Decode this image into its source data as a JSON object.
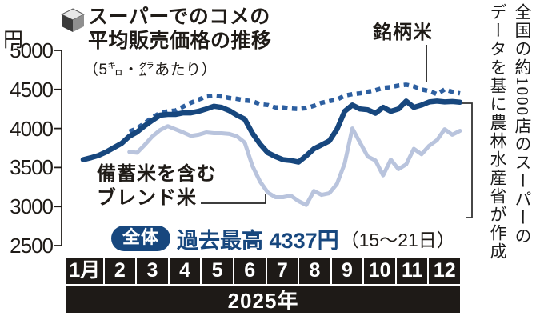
{
  "title": {
    "line1": "スーパーでのコメの",
    "line2": "平均販売価格の推移",
    "subtitle": "（5㌔・㌘あたり）",
    "bullet_icon": "cube-icon"
  },
  "unit_label": "円",
  "labels": {
    "brand_line": "銘柄米",
    "blend_line1": "備蓄米を含む",
    "blend_line2": "ブレンド米",
    "overall_badge": "全体",
    "record_label": "過去最高",
    "record_value": "4337円",
    "record_period": "（15〜21日）"
  },
  "source_note": {
    "col1": "全国の約1000店のスーパーの",
    "col2": "データを基に農林水産省が作成"
  },
  "xaxis": {
    "months": [
      "1月",
      "2",
      "3",
      "4",
      "5",
      "6",
      "7",
      "8",
      "9",
      "10",
      "11",
      "12"
    ],
    "year": "2025年"
  },
  "chart_data": {
    "type": "line",
    "title": "スーパーでのコメの平均販売価格の推移（5キログラムあたり、円）",
    "x_unit": "2025年 週次（1月〜12月）",
    "ylabel": "円",
    "ylim": [
      2500,
      5000
    ],
    "yticks": [
      5000,
      4500,
      4000,
      3500,
      3000,
      2500
    ],
    "grid": false,
    "annotations": [
      "全体 過去最高 4337円（15〜21日）"
    ],
    "series": [
      {
        "key": "blend",
        "name": "備蓄米を含むブレンド米",
        "style": "solid",
        "color": "#b9c4dd",
        "width": 5,
        "values": [
          null,
          null,
          null,
          null,
          null,
          null,
          3700,
          3690,
          3790,
          3900,
          3980,
          4030,
          3990,
          3950,
          3905,
          3920,
          3950,
          3940,
          3940,
          3930,
          3900,
          3820,
          3520,
          3320,
          3180,
          3120,
          3120,
          3140,
          3070,
          3020,
          3200,
          3150,
          3170,
          3290,
          3550,
          4000,
          3820,
          3640,
          3590,
          3400,
          3600,
          3480,
          3540,
          3740,
          3670,
          3780,
          3850,
          3990,
          3920,
          3970
        ]
      },
      {
        "key": "brand",
        "name": "銘柄米",
        "style": "dotted",
        "color": "#2d5fa0",
        "width": 5.5,
        "values": [
          null,
          null,
          null,
          null,
          null,
          null,
          3960,
          4000,
          4070,
          4140,
          4200,
          4220,
          4230,
          4280,
          4330,
          4370,
          4410,
          4420,
          4410,
          4390,
          4380,
          4360,
          4350,
          4310,
          4300,
          4270,
          4270,
          4255,
          4250,
          4260,
          4290,
          4330,
          4350,
          4370,
          4420,
          4440,
          4450,
          4470,
          4490,
          4520,
          4530,
          4550,
          4560,
          4540,
          4500,
          4480,
          4440,
          4500,
          4470,
          4450
        ]
      },
      {
        "key": "overall",
        "name": "全体",
        "style": "solid-thick",
        "color": "#17477e",
        "width": 6.5,
        "values": [
          3600,
          3625,
          3655,
          3700,
          3755,
          3810,
          3900,
          3955,
          4035,
          4105,
          4170,
          4180,
          4180,
          4200,
          4200,
          4220,
          4250,
          4285,
          4270,
          4230,
          4170,
          4120,
          3940,
          3800,
          3690,
          3640,
          3600,
          3590,
          3570,
          3650,
          3740,
          3790,
          3840,
          3990,
          4220,
          4300,
          4250,
          4240,
          4195,
          4270,
          4220,
          4250,
          4350,
          4270,
          4300,
          4340,
          4350,
          4340,
          4345,
          4337
        ]
      }
    ]
  }
}
